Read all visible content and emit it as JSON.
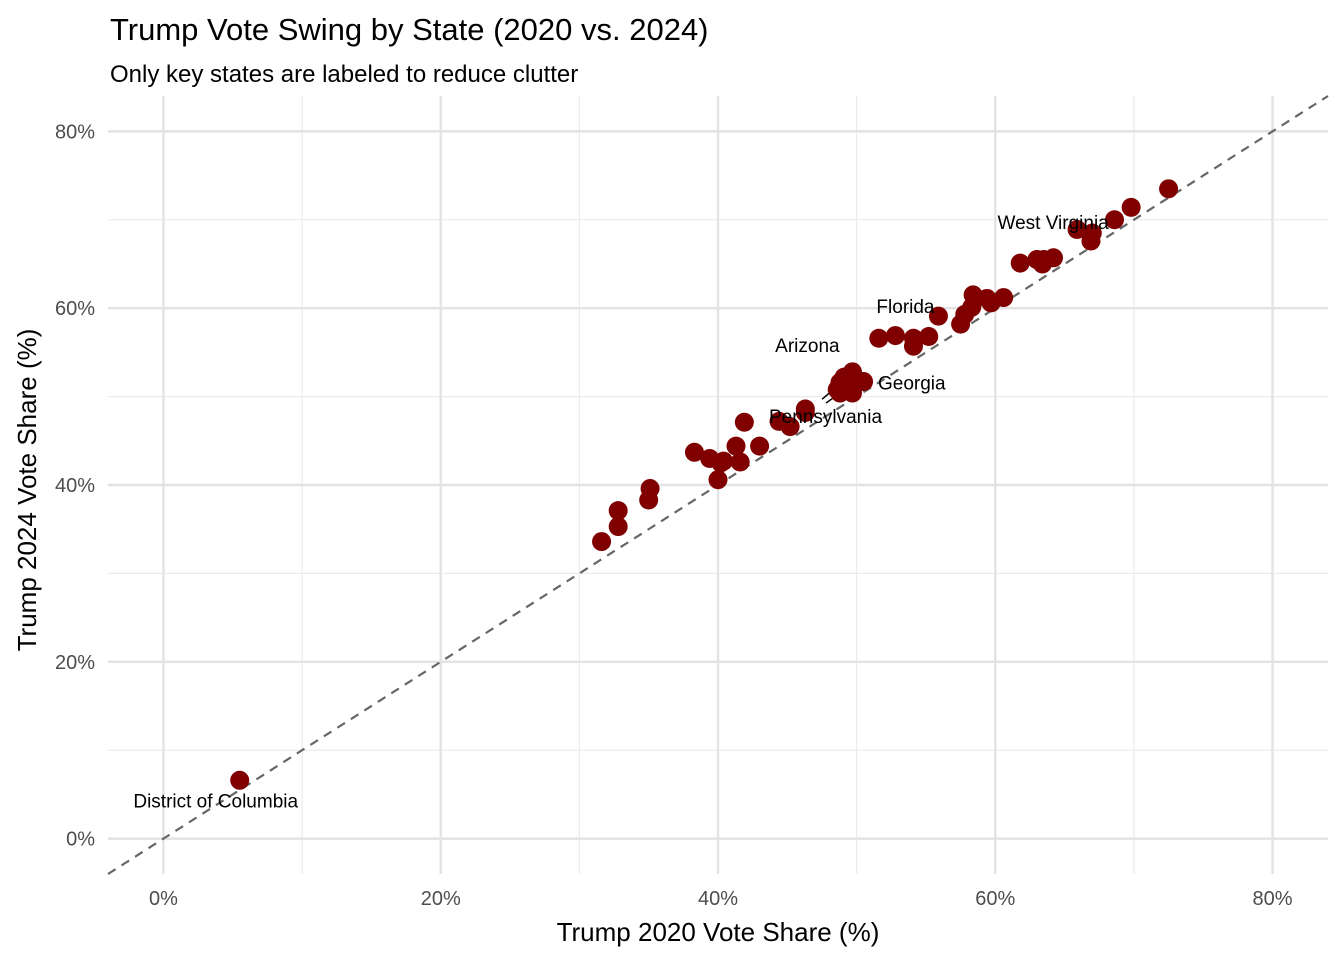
{
  "chart_data": {
    "type": "scatter",
    "title": "Trump Vote Swing by State (2020 vs. 2024)",
    "subtitle": "Only key states are labeled to reduce clutter",
    "xlabel": "Trump 2020 Vote Share (%)",
    "ylabel": "Trump 2024 Vote Share (%)",
    "xlim": [
      -4,
      84
    ],
    "ylim": [
      -4,
      84
    ],
    "xticks": [
      0,
      20,
      40,
      60,
      80
    ],
    "yticks": [
      0,
      20,
      40,
      60,
      80
    ],
    "tick_labels": [
      "0%",
      "20%",
      "40%",
      "60%",
      "80%"
    ],
    "grid": true,
    "reference_line": {
      "type": "y=x",
      "style": "dashed",
      "color": "#666666"
    },
    "point_color": "#800000",
    "points": [
      {
        "x": 5.5,
        "y": 6.6,
        "label": "District of Columbia"
      },
      {
        "x": 31.6,
        "y": 33.6
      },
      {
        "x": 32.8,
        "y": 35.3
      },
      {
        "x": 32.8,
        "y": 37.1
      },
      {
        "x": 35.0,
        "y": 38.3
      },
      {
        "x": 35.1,
        "y": 39.6
      },
      {
        "x": 38.3,
        "y": 43.7
      },
      {
        "x": 39.4,
        "y": 43.0
      },
      {
        "x": 40.0,
        "y": 40.6
      },
      {
        "x": 40.2,
        "y": 42.5
      },
      {
        "x": 40.4,
        "y": 42.7
      },
      {
        "x": 41.3,
        "y": 44.4
      },
      {
        "x": 41.6,
        "y": 42.6
      },
      {
        "x": 41.9,
        "y": 47.1
      },
      {
        "x": 43.0,
        "y": 44.4
      },
      {
        "x": 44.4,
        "y": 47.2
      },
      {
        "x": 45.2,
        "y": 46.6
      },
      {
        "x": 46.3,
        "y": 48.2
      },
      {
        "x": 46.3,
        "y": 48.6
      },
      {
        "x": 48.8,
        "y": 50.4,
        "label": "Pennsylvania"
      },
      {
        "x": 48.6,
        "y": 50.8
      },
      {
        "x": 48.8,
        "y": 51.6
      },
      {
        "x": 49.7,
        "y": 52.8
      },
      {
        "x": 49.7,
        "y": 50.4
      },
      {
        "x": 49.9,
        "y": 51.7
      },
      {
        "x": 50.5,
        "y": 51.7,
        "label": "Georgia"
      },
      {
        "x": 49.1,
        "y": 52.2,
        "label": "Arizona"
      },
      {
        "x": 51.6,
        "y": 56.6
      },
      {
        "x": 52.8,
        "y": 56.9
      },
      {
        "x": 54.1,
        "y": 56.6
      },
      {
        "x": 54.1,
        "y": 55.7
      },
      {
        "x": 55.2,
        "y": 56.8
      },
      {
        "x": 55.9,
        "y": 59.1,
        "label": "Florida"
      },
      {
        "x": 57.5,
        "y": 58.2
      },
      {
        "x": 57.8,
        "y": 59.3
      },
      {
        "x": 58.3,
        "y": 60.1
      },
      {
        "x": 58.4,
        "y": 61.5
      },
      {
        "x": 59.4,
        "y": 61.1
      },
      {
        "x": 59.7,
        "y": 60.6
      },
      {
        "x": 60.6,
        "y": 61.2
      },
      {
        "x": 61.8,
        "y": 65.1
      },
      {
        "x": 63.0,
        "y": 65.5
      },
      {
        "x": 63.4,
        "y": 65.0
      },
      {
        "x": 63.5,
        "y": 65.5
      },
      {
        "x": 64.2,
        "y": 65.7
      },
      {
        "x": 65.9,
        "y": 68.9
      },
      {
        "x": 66.9,
        "y": 67.6
      },
      {
        "x": 67.0,
        "y": 68.5
      },
      {
        "x": 68.6,
        "y": 70.0,
        "label": "West Virginia"
      },
      {
        "x": 69.8,
        "y": 71.4
      },
      {
        "x": 72.5,
        "y": 73.5
      }
    ]
  }
}
